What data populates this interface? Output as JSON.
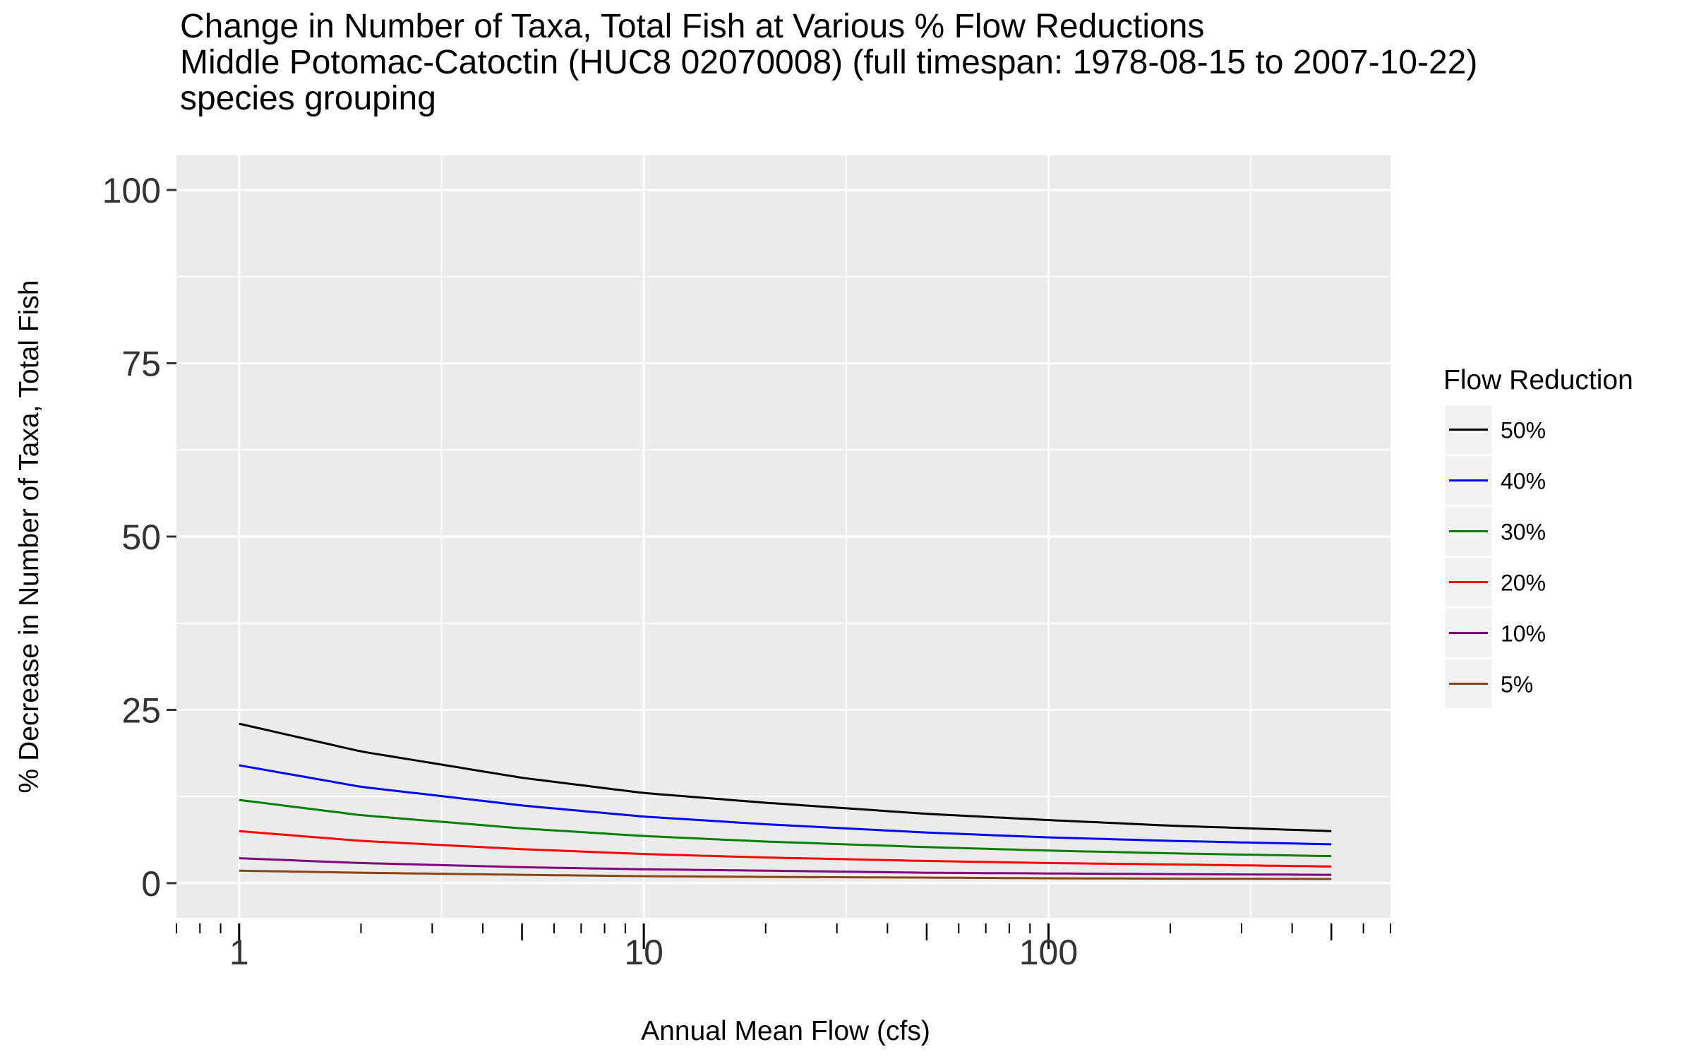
{
  "chart_data": {
    "type": "line",
    "title": "Change in Number of Taxa, Total Fish at Various % Flow Reductions",
    "subtitle": "Middle Potomac-Catoctin (HUC8 02070008) (full timespan: 1978-08-15 to 2007-10-22)",
    "caption": "species grouping",
    "xlabel": "Annual Mean Flow (cfs)",
    "ylabel": "% Decrease in Number of Taxa, Total Fish",
    "x_scale": "log10",
    "xlim": [
      0.7,
      700
    ],
    "ylim": [
      -5,
      105
    ],
    "x_tick_labels": [
      "1",
      "10",
      "100"
    ],
    "y_tick_labels": [
      "0",
      "25",
      "50",
      "75",
      "100"
    ],
    "grid": true,
    "legend": {
      "title": "Flow Reduction",
      "position": "right"
    },
    "x": [
      1,
      2,
      5,
      10,
      20,
      50,
      100,
      200,
      500
    ],
    "series": [
      {
        "name": "50%",
        "color": "#000000",
        "values": [
          23.0,
          19.0,
          15.2,
          13.0,
          11.6,
          10.0,
          9.1,
          8.3,
          7.5
        ]
      },
      {
        "name": "40%",
        "color": "#0000FF",
        "values": [
          17.0,
          13.9,
          11.2,
          9.6,
          8.5,
          7.3,
          6.6,
          6.1,
          5.6
        ]
      },
      {
        "name": "30%",
        "color": "#008000",
        "values": [
          12.0,
          9.8,
          7.9,
          6.8,
          6.0,
          5.2,
          4.7,
          4.3,
          3.9
        ]
      },
      {
        "name": "20%",
        "color": "#FF0000",
        "values": [
          7.5,
          6.1,
          4.9,
          4.2,
          3.7,
          3.2,
          2.9,
          2.7,
          2.4
        ]
      },
      {
        "name": "10%",
        "color": "#800080",
        "values": [
          3.6,
          2.9,
          2.3,
          2.0,
          1.8,
          1.5,
          1.4,
          1.3,
          1.2
        ]
      },
      {
        "name": "5%",
        "color": "#8B4513",
        "values": [
          1.8,
          1.5,
          1.2,
          1.0,
          0.9,
          0.8,
          0.7,
          0.65,
          0.6
        ]
      }
    ]
  },
  "colors": {
    "panel_background": "#EBEBEB",
    "grid_line": "#FFFFFF",
    "legend_key_background": "#F2F2F2"
  }
}
